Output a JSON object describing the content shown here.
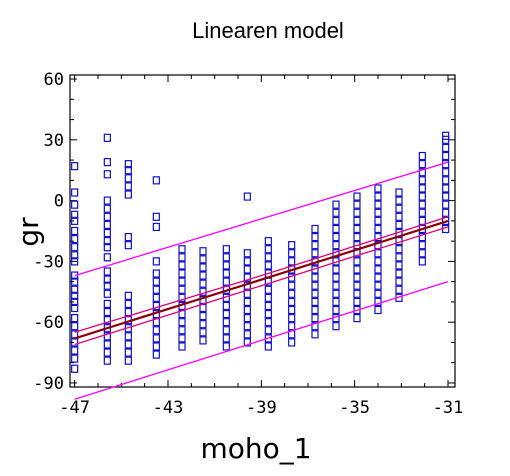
{
  "chart_data": {
    "type": "scatter",
    "title": "Linearen model",
    "xlabel": "moho_1",
    "ylabel": "gr",
    "xlim": [
      -47.2,
      -30.7
    ],
    "ylim": [
      -92,
      62
    ],
    "xticks": [
      -47,
      -43,
      -39,
      -35,
      -31
    ],
    "yticks": [
      -90,
      -60,
      -30,
      0,
      30,
      60
    ],
    "grid": false,
    "legend": "none",
    "colors": {
      "points": "#1010d0",
      "fit": "#8b0000",
      "confidence": "#e0007a",
      "prediction": "#ff00ff"
    },
    "fit_line": {
      "x": [
        -47,
        -31
      ],
      "y": [
        -68,
        -10
      ]
    },
    "confidence_band": {
      "x": [
        -47,
        -39,
        -31
      ],
      "lower": [
        -71,
        -42,
        -13
      ],
      "upper": [
        -65,
        -37,
        -8
      ]
    },
    "prediction_band": {
      "x": [
        -47,
        -31
      ],
      "lower": [
        -98,
        -40
      ],
      "upper": [
        -37,
        19
      ]
    },
    "columns": [
      {
        "x": -47,
        "y": [
          -83,
          -78,
          -74,
          -70,
          -66,
          -62,
          -58,
          -53,
          -50,
          -47,
          -44,
          -40,
          -37,
          -30,
          -27,
          -23,
          -19,
          -15,
          -10,
          -7,
          -2,
          4,
          17
        ]
      },
      {
        "x": -45.6,
        "y": [
          -79,
          -75,
          -71,
          -67,
          -63,
          -59,
          -55,
          -51,
          -46,
          -42,
          -39,
          -35,
          -28,
          -23,
          -20,
          -16,
          -12,
          -8,
          -4,
          0,
          13,
          19,
          31
        ]
      },
      {
        "x": -44.7,
        "y": [
          -79,
          -75,
          -71,
          -67,
          -63,
          -59,
          -55,
          -51,
          -47,
          -22,
          -18,
          3,
          7,
          11,
          15,
          18
        ]
      },
      {
        "x": -43.5,
        "y": [
          -76,
          -72,
          -68,
          -64,
          -60,
          -56,
          -52,
          -48,
          -44,
          -40,
          -36,
          -30,
          -13,
          -8,
          10
        ]
      },
      {
        "x": -42.4,
        "y": [
          -72,
          -68,
          -64,
          -60,
          -56,
          -52,
          -48,
          -44,
          -40,
          -36,
          -32,
          -28,
          -24
        ]
      },
      {
        "x": -41.5,
        "y": [
          -69,
          -65,
          -61,
          -57,
          -53,
          -49,
          -45,
          -41,
          -37,
          -33,
          -29,
          -25
        ]
      },
      {
        "x": -40.5,
        "y": [
          -72,
          -68,
          -64,
          -60,
          -56,
          -52,
          -48,
          -44,
          -40,
          -36,
          -32,
          -28,
          -24
        ]
      },
      {
        "x": -39.6,
        "y": [
          -70,
          -66,
          -62,
          -58,
          -54,
          -50,
          -46,
          -42,
          -38,
          -34,
          -30,
          -26,
          2
        ]
      },
      {
        "x": -38.7,
        "y": [
          -72,
          -68,
          -64,
          -60,
          -56,
          -52,
          -48,
          -44,
          -40,
          -36,
          -32,
          -28,
          -24,
          -20
        ]
      },
      {
        "x": -37.7,
        "y": [
          -70,
          -66,
          -62,
          -58,
          -54,
          -50,
          -46,
          -42,
          -38,
          -34,
          -30,
          -26,
          -22
        ]
      },
      {
        "x": -36.7,
        "y": [
          -66,
          -62,
          -58,
          -54,
          -50,
          -46,
          -42,
          -38,
          -34,
          -30,
          -26,
          -22,
          -18,
          -14
        ]
      },
      {
        "x": -35.8,
        "y": [
          -62,
          -58,
          -54,
          -50,
          -46,
          -42,
          -38,
          -34,
          -30,
          -26,
          -22,
          -18,
          -14,
          -10,
          -6,
          -2
        ]
      },
      {
        "x": -34.9,
        "y": [
          -58,
          -54,
          -50,
          -46,
          -42,
          -38,
          -34,
          -30,
          -26,
          -22,
          -18,
          -14,
          -10,
          -6,
          -2,
          2
        ]
      },
      {
        "x": -34.0,
        "y": [
          -54,
          -50,
          -46,
          -42,
          -38,
          -34,
          -30,
          -26,
          -22,
          -18,
          -14,
          -10,
          -6,
          -2,
          2,
          6
        ]
      },
      {
        "x": -33.1,
        "y": [
          -48,
          -44,
          -40,
          -36,
          -32,
          -28,
          -24,
          -20,
          -16,
          -12,
          -8,
          -4,
          0,
          4
        ]
      },
      {
        "x": -32.1,
        "y": [
          -30,
          -26,
          -22,
          -18,
          -14,
          -10,
          -6,
          -2,
          2,
          6,
          10,
          14,
          18,
          22
        ]
      },
      {
        "x": -31.1,
        "y": [
          -14,
          -10,
          -6,
          -2,
          2,
          6,
          10,
          14,
          18,
          22,
          26,
          30,
          32
        ]
      }
    ]
  }
}
